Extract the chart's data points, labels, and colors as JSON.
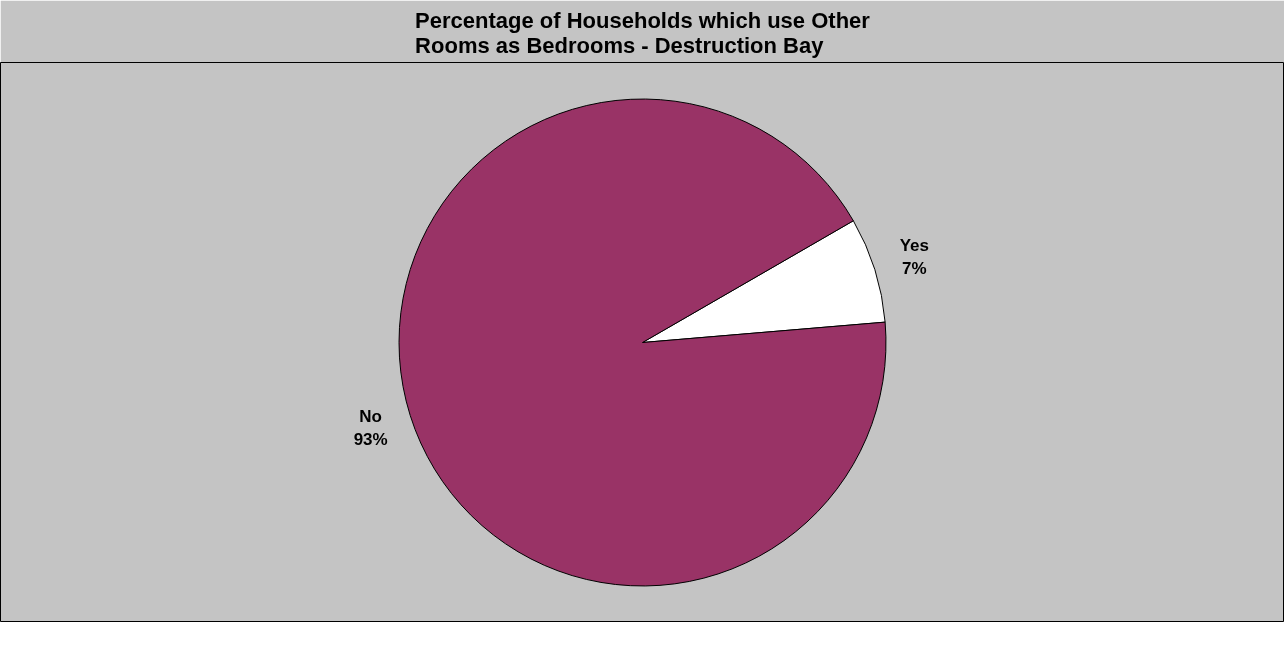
{
  "chart_data": {
    "type": "pie",
    "title": "Percentage of Households which use Other Rooms as Bedrooms - Destruction Bay",
    "categories": [
      "Yes",
      "No"
    ],
    "values": [
      7,
      93
    ],
    "colors": [
      "#ffffff",
      "#993366"
    ],
    "value_labels": [
      "7%",
      "93%"
    ]
  }
}
